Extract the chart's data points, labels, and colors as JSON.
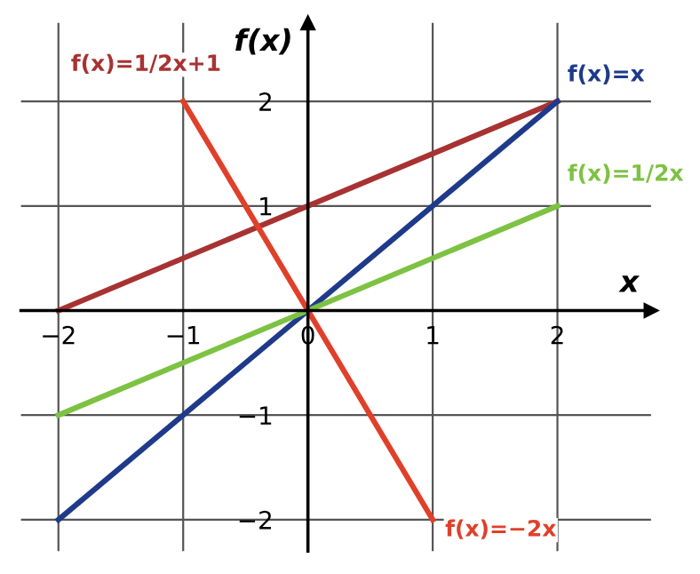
{
  "chart_data": {
    "type": "line",
    "xlabel": "x",
    "ylabel": "f(x)",
    "xlim": [
      -2.3,
      2.75
    ],
    "ylim": [
      -2.3,
      2.75
    ],
    "xticks": [
      {
        "value": -2,
        "label": "−2"
      },
      {
        "value": -1,
        "label": "−1"
      },
      {
        "value": 0,
        "label": "0"
      },
      {
        "value": 1,
        "label": "1"
      },
      {
        "value": 2,
        "label": "2"
      }
    ],
    "yticks": [
      {
        "value": -2,
        "label": "−2"
      },
      {
        "value": -1,
        "label": "−1"
      },
      {
        "value": 1,
        "label": "1"
      },
      {
        "value": 2,
        "label": "2"
      }
    ],
    "grid": true,
    "legend": false,
    "marker": "none",
    "line_style": "solid",
    "series": [
      {
        "name": "f(x)=1/2x+1",
        "color": "#a83232",
        "x": [
          -2,
          2
        ],
        "values": [
          0,
          2
        ]
      },
      {
        "name": "f(x)=x",
        "color": "#1f3a8a",
        "x": [
          -2,
          2
        ],
        "values": [
          -2,
          2
        ]
      },
      {
        "name": "f(x)=1/2x",
        "color": "#7dc242",
        "x": [
          -2,
          2
        ],
        "values": [
          -1,
          1
        ]
      },
      {
        "name": "f(x)=−2x",
        "color": "#e0402a",
        "x": [
          -1,
          1
        ],
        "values": [
          2,
          -2
        ]
      }
    ]
  }
}
